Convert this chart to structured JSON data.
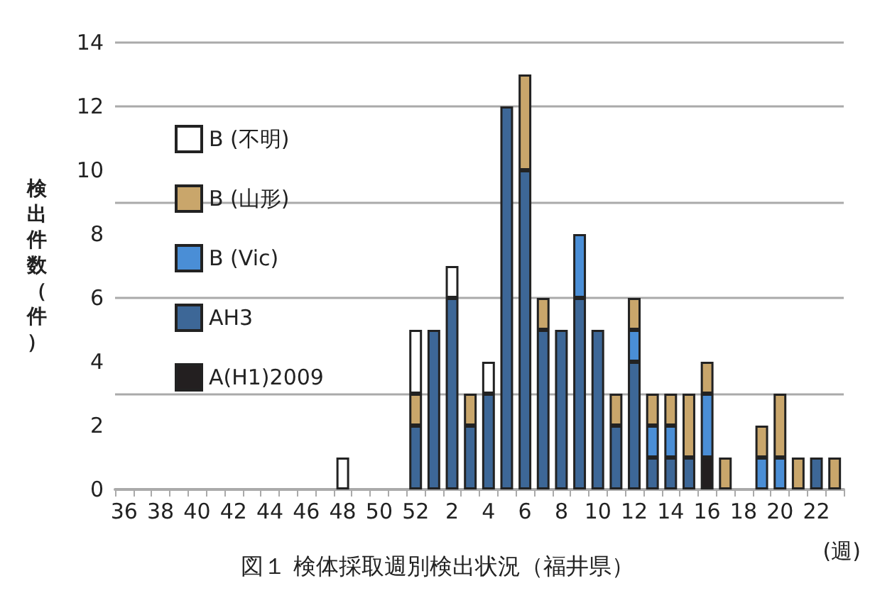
{
  "chart_data": {
    "type": "bar",
    "title": "図１ 検体採取週別検出状況（福井県）",
    "xlabel": "(週)",
    "ylabel": "検出件数（件）",
    "categories": [
      "36",
      null,
      "38",
      null,
      "40",
      null,
      "42",
      null,
      "44",
      null,
      "46",
      null,
      "48",
      null,
      "50",
      null,
      "52",
      null,
      "2",
      null,
      "4",
      null,
      "6",
      null,
      "8",
      null,
      "10",
      null,
      "12",
      null,
      "14",
      null,
      "16",
      null,
      "18",
      null,
      "20",
      null,
      "22",
      null
    ],
    "stacked": true,
    "legend": "top left",
    "grid": "y",
    "ylim": [
      0,
      14
    ],
    "yticks": [
      0,
      2,
      4,
      6,
      8,
      10,
      12,
      14
    ],
    "series": [
      {
        "name": "A(H1)2009",
        "color": "#231f20",
        "values": [
          0,
          0,
          0,
          0,
          0,
          0,
          0,
          0,
          0,
          0,
          0,
          0,
          0,
          0,
          0,
          0,
          0,
          0,
          0,
          0,
          0,
          0,
          0,
          0,
          0,
          0,
          0,
          0,
          0,
          0,
          0,
          0,
          1,
          0,
          0,
          0,
          0,
          0,
          0,
          0
        ]
      },
      {
        "name": "AH3",
        "color": "#3d6797",
        "values": [
          0,
          0,
          0,
          0,
          0,
          0,
          0,
          0,
          0,
          0,
          0,
          0,
          0,
          0,
          0,
          0,
          2,
          5,
          6,
          2,
          3,
          12,
          10,
          5,
          5,
          6,
          5,
          2,
          4,
          1,
          1,
          1,
          0,
          0,
          0,
          0,
          0,
          0,
          1,
          0
        ]
      },
      {
        "name": "B (Vic)",
        "color": "#4a8ed6",
        "values": [
          0,
          0,
          0,
          0,
          0,
          0,
          0,
          0,
          0,
          0,
          0,
          0,
          0,
          0,
          0,
          0,
          0,
          0,
          0,
          0,
          0,
          0,
          0,
          0,
          0,
          2,
          0,
          0,
          1,
          1,
          1,
          0,
          2,
          0,
          0,
          1,
          1,
          0,
          0,
          0
        ]
      },
      {
        "name": "B (山形)",
        "color": "#c9a66b",
        "values": [
          0,
          0,
          0,
          0,
          0,
          0,
          0,
          0,
          0,
          0,
          0,
          0,
          0,
          0,
          0,
          0,
          1,
          0,
          0,
          1,
          0,
          0,
          3,
          1,
          0,
          0,
          0,
          1,
          1,
          1,
          1,
          2,
          1,
          1,
          0,
          1,
          2,
          1,
          0,
          1
        ]
      },
      {
        "name": "B (不明)",
        "color": "#ffffff",
        "values": [
          0,
          0,
          0,
          0,
          0,
          0,
          0,
          0,
          0,
          0,
          0,
          0,
          1,
          0,
          0,
          0,
          2,
          0,
          1,
          0,
          1,
          0,
          0,
          0,
          0,
          0,
          0,
          0,
          0,
          0,
          0,
          0,
          0,
          0,
          0,
          0,
          0,
          0,
          0,
          0
        ]
      }
    ]
  }
}
